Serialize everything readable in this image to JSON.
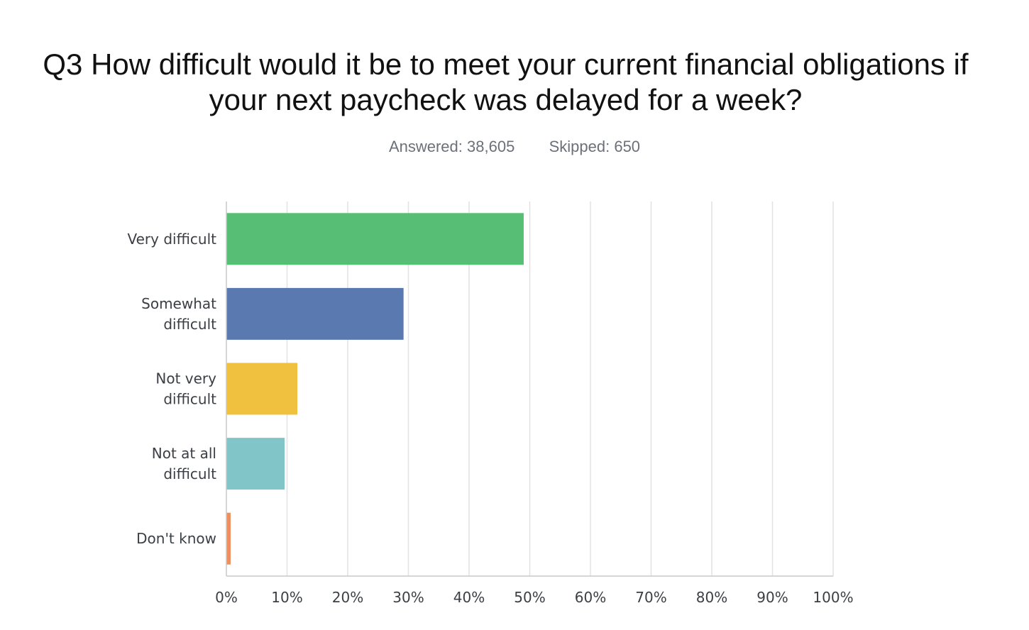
{
  "title": "Q3 How difficult would it be to meet your current financial obligations if your next paycheck was delayed for a week?",
  "stats": {
    "answered_label": "Answered:",
    "answered_value": "38,605",
    "skipped_label": "Skipped:",
    "skipped_value": "650"
  },
  "chart_data": {
    "type": "bar",
    "orientation": "horizontal",
    "categories": [
      [
        "Very difficult"
      ],
      [
        "Somewhat",
        "difficult"
      ],
      [
        "Not very",
        "difficult"
      ],
      [
        "Not at all",
        "difficult"
      ],
      [
        "Don't know"
      ]
    ],
    "values": [
      49,
      29.2,
      11.7,
      9.6,
      0.7
    ],
    "colors": [
      "#57bf75",
      "#5a79b0",
      "#efc13f",
      "#82c5c9",
      "#ef8f5e"
    ],
    "xlim": [
      0,
      100
    ],
    "ticks": [
      0,
      10,
      20,
      30,
      40,
      50,
      60,
      70,
      80,
      90,
      100
    ],
    "tick_labels": [
      "0%",
      "10%",
      "20%",
      "30%",
      "40%",
      "50%",
      "60%",
      "70%",
      "80%",
      "90%",
      "100%"
    ],
    "grid": true,
    "legend": "none"
  }
}
